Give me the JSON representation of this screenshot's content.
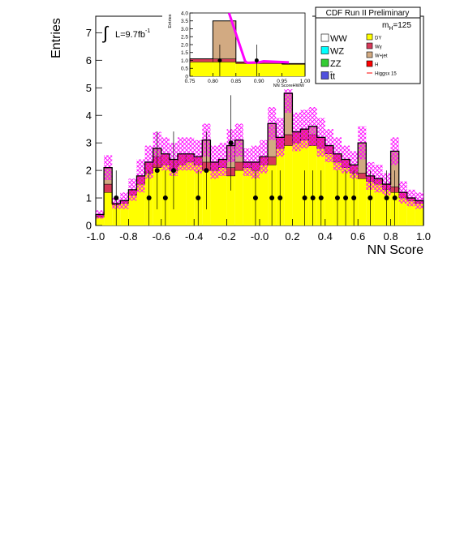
{
  "header": {
    "experiment": "CDF Run II Preliminary",
    "mass_label": "m",
    "mass_sub": "H",
    "mass_value": "=125",
    "lumi_label": "L=9.7fb",
    "lumi_exp": "-1"
  },
  "chart_data": [
    {
      "type": "bar",
      "stacked": true,
      "xlabel": "NN Score",
      "ylabel": "Entries",
      "xlim": [
        -1.0,
        1.0
      ],
      "ylim": [
        0,
        7.6
      ],
      "xticks": [
        "-1.0",
        "-0.8",
        "-0.6",
        "-0.4",
        "-0.2",
        "-0.0",
        "0.2",
        "0.4",
        "0.6",
        "0.8",
        "1.0"
      ],
      "yticks": [
        "0",
        "1",
        "2",
        "3",
        "4",
        "5",
        "6",
        "7"
      ],
      "bin_edges": [
        -1.0,
        -0.95,
        -0.9,
        -0.85,
        -0.8,
        -0.75,
        -0.7,
        -0.65,
        -0.6,
        -0.55,
        -0.5,
        -0.45,
        -0.4,
        -0.35,
        -0.3,
        -0.25,
        -0.2,
        -0.15,
        -0.1,
        -0.05,
        0.0,
        0.05,
        0.1,
        0.15,
        0.2,
        0.25,
        0.3,
        0.35,
        0.4,
        0.45,
        0.5,
        0.55,
        0.6,
        0.65,
        0.7,
        0.75,
        0.8,
        0.85,
        0.9,
        0.95,
        1.0
      ],
      "series": [
        {
          "name": "DY",
          "color": "#ffff00",
          "values": [
            0.3,
            1.2,
            0.75,
            0.8,
            1.1,
            1.5,
            1.9,
            2.1,
            2.2,
            2.0,
            2.2,
            2.3,
            2.2,
            2.0,
            2.0,
            2.1,
            1.8,
            2.0,
            2.1,
            2.0,
            2.2,
            2.2,
            2.8,
            2.9,
            3.0,
            3.1,
            2.9,
            2.8,
            2.6,
            2.3,
            2.1,
            1.9,
            1.7,
            1.6,
            1.5,
            1.3,
            1.2,
            1.0,
            0.9,
            0.8
          ]
        },
        {
          "name": "Wγ",
          "color": "#d63a5a",
          "values": [
            0.1,
            0.3,
            0.05,
            0.1,
            0.2,
            0.3,
            0.4,
            0.4,
            0.4,
            0.4,
            0.4,
            0.3,
            0.3,
            0.3,
            0.3,
            0.3,
            0.3,
            0.3,
            0.2,
            0.3,
            0.3,
            0.3,
            0.4,
            0.4,
            0.4,
            0.4,
            0.4,
            0.4,
            0.3,
            0.3,
            0.3,
            0.3,
            0.2,
            0.2,
            0.2,
            0.2,
            0.2,
            0.2,
            0.1,
            0.1
          ]
        },
        {
          "name": "W+jet",
          "color": "#d2aa82",
          "values": [
            0.0,
            0.6,
            0.0,
            0.0,
            0.0,
            0.0,
            0.0,
            0.3,
            0.0,
            0.0,
            0.0,
            0.0,
            0.0,
            0.8,
            0.0,
            0.0,
            0.8,
            0.8,
            0.0,
            0.0,
            0.0,
            1.2,
            0.0,
            1.5,
            0.0,
            0.0,
            0.3,
            0.0,
            0.0,
            0.0,
            0.0,
            0.0,
            1.1,
            0.0,
            0.0,
            0.0,
            1.3,
            0.0,
            0.0,
            0.0
          ]
        },
        {
          "name": "WW",
          "color": "#ffffff",
          "values": [
            0,
            0,
            0,
            0,
            0,
            0,
            0,
            0,
            0,
            0,
            0,
            0,
            0,
            0,
            0,
            0,
            0,
            0,
            0,
            0,
            0,
            0,
            0,
            0,
            0,
            0,
            0,
            0,
            0,
            0,
            0,
            0,
            0,
            0,
            0,
            0,
            0,
            0,
            0,
            0
          ]
        },
        {
          "name": "WZ",
          "color": "#00ffff",
          "values": [
            0,
            0,
            0,
            0,
            0,
            0,
            0,
            0,
            0,
            0,
            0,
            0,
            0,
            0,
            0,
            0,
            0,
            0,
            0,
            0,
            0,
            0,
            0,
            0,
            0,
            0,
            0,
            0,
            0,
            0,
            0,
            0,
            0,
            0,
            0,
            0,
            0,
            0,
            0,
            0
          ]
        },
        {
          "name": "ZZ",
          "color": "#33cc33",
          "values": [
            0,
            0,
            0,
            0,
            0,
            0,
            0,
            0,
            0,
            0,
            0,
            0,
            0,
            0,
            0,
            0,
            0,
            0,
            0,
            0,
            0,
            0,
            0,
            0,
            0,
            0,
            0,
            0,
            0,
            0,
            0,
            0,
            0,
            0,
            0,
            0,
            0,
            0,
            0,
            0
          ]
        },
        {
          "name": "t̄t",
          "color": "#5050dd",
          "values": [
            0,
            0,
            0,
            0,
            0,
            0,
            0,
            0,
            0,
            0,
            0,
            0,
            0,
            0,
            0,
            0,
            0,
            0,
            0,
            0,
            0,
            0,
            0,
            0,
            0,
            0,
            0,
            0,
            0,
            0,
            0,
            0,
            0,
            0,
            0,
            0,
            0,
            0,
            0,
            0
          ]
        }
      ],
      "uncertainty": [
        0.15,
        0.45,
        0.2,
        0.3,
        0.4,
        0.6,
        0.6,
        0.6,
        0.6,
        0.6,
        0.6,
        0.6,
        0.6,
        0.6,
        0.6,
        0.6,
        0.6,
        0.6,
        0.5,
        0.6,
        0.6,
        0.6,
        0.7,
        0.7,
        0.7,
        0.7,
        0.7,
        0.7,
        0.6,
        0.6,
        0.5,
        0.5,
        0.6,
        0.5,
        0.5,
        0.4,
        0.5,
        0.4,
        0.3,
        0.3
      ],
      "uncertainty_color": "#ff00ff",
      "data_points": {
        "name": "Data",
        "x": [
          -0.875,
          -0.675,
          -0.625,
          -0.575,
          -0.525,
          -0.375,
          -0.325,
          -0.175,
          -0.025,
          0.075,
          0.125,
          0.275,
          0.325,
          0.375,
          0.475,
          0.525,
          0.575,
          0.675,
          0.775,
          0.825
        ],
        "y": [
          1,
          1,
          2,
          1,
          2,
          1,
          2,
          3,
          1,
          1,
          1,
          1,
          1,
          1,
          1,
          1,
          1,
          1,
          1,
          1
        ]
      },
      "legend": [
        {
          "label": "WW",
          "color": "#ffffff"
        },
        {
          "label": "DY",
          "color": "#ffff00"
        },
        {
          "label": "WZ",
          "color": "#00ffff"
        },
        {
          "label": "Wγ",
          "color": "#d63a5a"
        },
        {
          "label": "ZZ",
          "color": "#33cc33"
        },
        {
          "label": "W+jet",
          "color": "#d2aa82"
        },
        {
          "label": "t̄t",
          "color": "#5050dd"
        },
        {
          "label": "H",
          "color": "#ff0000"
        },
        {
          "label": "",
          "color": ""
        },
        {
          "label": "Higgsx 15",
          "color": "#ff0000"
        }
      ],
      "legend_placement": "top-right"
    },
    {
      "type": "bar",
      "role": "inset",
      "xlabel": "NN ScoreHWW",
      "ylabel": "Entries",
      "xlim": [
        0.75,
        1.0
      ],
      "ylim": [
        0,
        4.0
      ],
      "xticks": [
        "0.75",
        "0.80",
        "0.85",
        "0.90",
        "0.95",
        "1.00"
      ],
      "yticks": [
        "0",
        "0.5",
        "1.0",
        "1.5",
        "2.0",
        "2.5",
        "3.0",
        "3.5",
        "4.0"
      ],
      "bin_edges": [
        0.75,
        0.8,
        0.85,
        0.9,
        0.95,
        1.0
      ],
      "series": [
        {
          "name": "DY",
          "color": "#ffff00",
          "values": [
            0.9,
            0.9,
            0.8,
            0.8,
            0.75
          ]
        },
        {
          "name": "Wγ",
          "color": "#d63a5a",
          "values": [
            0.2,
            0.2,
            0.1,
            0.1,
            0.05
          ]
        },
        {
          "name": "W+jet",
          "color": "#d2aa82",
          "values": [
            0.0,
            2.4,
            0.0,
            0.0,
            0.0
          ]
        }
      ],
      "signal_line": {
        "name": "Higgsx 15",
        "color": "#ff00ff",
        "x": [
          0.835,
          0.87,
          0.875,
          0.9,
          0.91,
          0.93,
          0.95,
          0.965
        ],
        "y": [
          4.0,
          0.95,
          0.85,
          0.88,
          0.95,
          0.92,
          0.9,
          0.88
        ]
      },
      "data_points": {
        "name": "Data",
        "x": [
          0.815,
          0.895
        ],
        "y": [
          1,
          1
        ]
      }
    }
  ]
}
